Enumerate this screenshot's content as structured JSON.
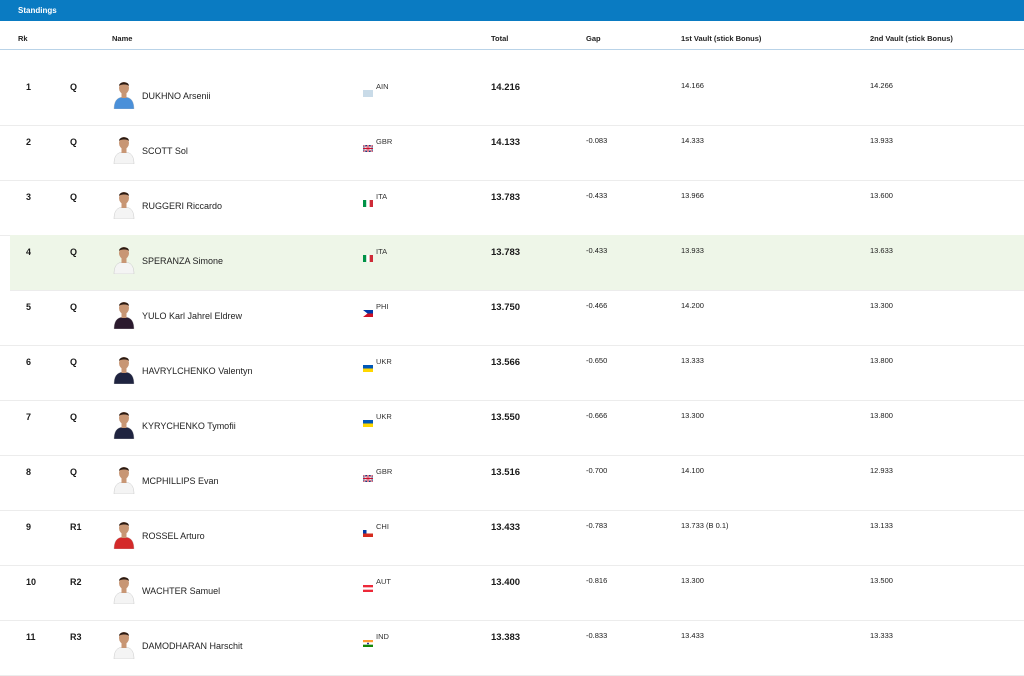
{
  "header": {
    "title": "Standings"
  },
  "columns": {
    "rk": "Rk",
    "name": "Name",
    "total": "Total",
    "gap": "Gap",
    "vault1": "1st Vault (stick Bonus)",
    "vault2": "2nd Vault (stick Bonus)"
  },
  "rows": [
    {
      "rk": "1",
      "q": "Q",
      "name": "DUKHNO Arsenii",
      "noc": "AIN",
      "flag": "ain",
      "total": "14.216",
      "gap": "",
      "v1": "14.166",
      "v2": "14.266",
      "kit": "#4a90d9"
    },
    {
      "rk": "2",
      "q": "Q",
      "name": "SCOTT Sol",
      "noc": "GBR",
      "flag": "gbr",
      "total": "14.133",
      "gap": "-0.083",
      "v1": "14.333",
      "v2": "13.933",
      "kit": "#f4f4f4"
    },
    {
      "rk": "3",
      "q": "Q",
      "name": "RUGGERI Riccardo",
      "noc": "ITA",
      "flag": "ita",
      "total": "13.783",
      "gap": "-0.433",
      "v1": "13.966",
      "v2": "13.600",
      "kit": "#f4f4f4"
    },
    {
      "rk": "4",
      "q": "Q",
      "name": "SPERANZA Simone",
      "noc": "ITA",
      "flag": "ita",
      "total": "13.783",
      "gap": "-0.433",
      "v1": "13.933",
      "v2": "13.633",
      "kit": "#f4f4f4",
      "highlight": true
    },
    {
      "rk": "5",
      "q": "Q",
      "name": "YULO Karl Jahrel Eldrew",
      "noc": "PHI",
      "flag": "phi",
      "total": "13.750",
      "gap": "-0.466",
      "v1": "14.200",
      "v2": "13.300",
      "kit": "#2b1a2e"
    },
    {
      "rk": "6",
      "q": "Q",
      "name": "HAVRYLCHENKO Valentyn",
      "noc": "UKR",
      "flag": "ukr",
      "total": "13.566",
      "gap": "-0.650",
      "v1": "13.333",
      "v2": "13.800",
      "kit": "#1f2440"
    },
    {
      "rk": "7",
      "q": "Q",
      "name": "KYRYCHENKO Tymofii",
      "noc": "UKR",
      "flag": "ukr",
      "total": "13.550",
      "gap": "-0.666",
      "v1": "13.300",
      "v2": "13.800",
      "kit": "#1f2440"
    },
    {
      "rk": "8",
      "q": "Q",
      "name": "MCPHILLIPS Evan",
      "noc": "GBR",
      "flag": "gbr",
      "total": "13.516",
      "gap": "-0.700",
      "v1": "14.100",
      "v2": "12.933",
      "kit": "#f4f4f4"
    },
    {
      "rk": "9",
      "q": "R1",
      "name": "ROSSEL Arturo",
      "noc": "CHI",
      "flag": "chi",
      "total": "13.433",
      "gap": "-0.783",
      "v1": "13.733 (B 0.1)",
      "v2": "13.133",
      "kit": "#d42a2a"
    },
    {
      "rk": "10",
      "q": "R2",
      "name": "WACHTER Samuel",
      "noc": "AUT",
      "flag": "aut",
      "total": "13.400",
      "gap": "-0.816",
      "v1": "13.300",
      "v2": "13.500",
      "kit": "#f4f4f4"
    },
    {
      "rk": "11",
      "q": "R3",
      "name": "DAMODHARAN Harschit",
      "noc": "IND",
      "flag": "ind",
      "total": "13.383",
      "gap": "-0.833",
      "v1": "13.433",
      "v2": "13.333",
      "kit": "#f4f4f4"
    }
  ]
}
